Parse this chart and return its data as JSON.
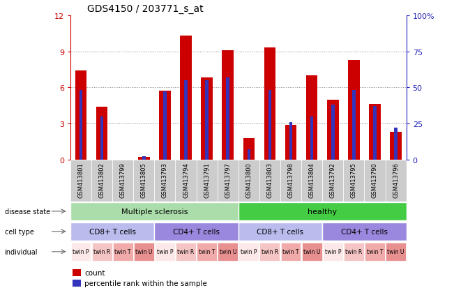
{
  "title": "GDS4150 / 203771_s_at",
  "samples": [
    "GSM413801",
    "GSM413802",
    "GSM413799",
    "GSM413805",
    "GSM413793",
    "GSM413794",
    "GSM413791",
    "GSM413797",
    "GSM413800",
    "GSM413803",
    "GSM413798",
    "GSM413804",
    "GSM413792",
    "GSM413795",
    "GSM413790",
    "GSM413796"
  ],
  "count_values": [
    7.4,
    4.4,
    0.0,
    0.2,
    5.7,
    10.3,
    6.8,
    9.1,
    1.8,
    9.3,
    2.9,
    7.0,
    5.0,
    8.3,
    4.6,
    2.3
  ],
  "percentile_values_pct": [
    48,
    30,
    0,
    2.5,
    47,
    55,
    55,
    57,
    7,
    48,
    26,
    30,
    38,
    48,
    37,
    22
  ],
  "ylim_left": [
    0,
    12
  ],
  "ylim_right": [
    0,
    100
  ],
  "yticks_left": [
    0,
    3,
    6,
    9,
    12
  ],
  "yticks_right": [
    0,
    25,
    50,
    75,
    100
  ],
  "ytick_labels_right": [
    "0",
    "25",
    "50",
    "75",
    "100%"
  ],
  "bar_color": "#cc0000",
  "percentile_color": "#3333bb",
  "bar_width": 0.55,
  "disease_state_groups": [
    {
      "label": "Multiple sclerosis",
      "start": 0,
      "end": 8,
      "color": "#aaddaa"
    },
    {
      "label": "healthy",
      "start": 8,
      "end": 16,
      "color": "#44cc44"
    }
  ],
  "cell_type_groups": [
    {
      "label": "CD8+ T cells",
      "start": 0,
      "end": 4,
      "color": "#bbbbee"
    },
    {
      "label": "CD4+ T cells",
      "start": 4,
      "end": 8,
      "color": "#9988dd"
    },
    {
      "label": "CD8+ T cells",
      "start": 8,
      "end": 12,
      "color": "#bbbbee"
    },
    {
      "label": "CD4+ T cells",
      "start": 12,
      "end": 16,
      "color": "#9988dd"
    }
  ],
  "individual_labels": [
    "twin P",
    "twin R",
    "twin T",
    "twin U",
    "twin P",
    "twin R",
    "twin T",
    "twin U",
    "twin P",
    "twin R",
    "twin T",
    "twin U",
    "twin P",
    "twin R",
    "twin T",
    "twin U"
  ],
  "ind_colors": [
    "#fce8e8",
    "#f5c5c5",
    "#f0aaaa",
    "#e89090",
    "#fce8e8",
    "#f5c5c5",
    "#f0aaaa",
    "#e89090",
    "#fce8e8",
    "#f5c5c5",
    "#f0aaaa",
    "#e89090",
    "#fce8e8",
    "#f5c5c5",
    "#f0aaaa",
    "#e89090"
  ],
  "row_labels": [
    "disease state",
    "cell type",
    "individual"
  ],
  "legend_count_label": "count",
  "legend_percentile_label": "percentile rank within the sample",
  "xtick_bg_color": "#cccccc",
  "grid_color": "#888888",
  "left_yaxis_color": "#cc0000",
  "right_yaxis_color": "#2222bb"
}
